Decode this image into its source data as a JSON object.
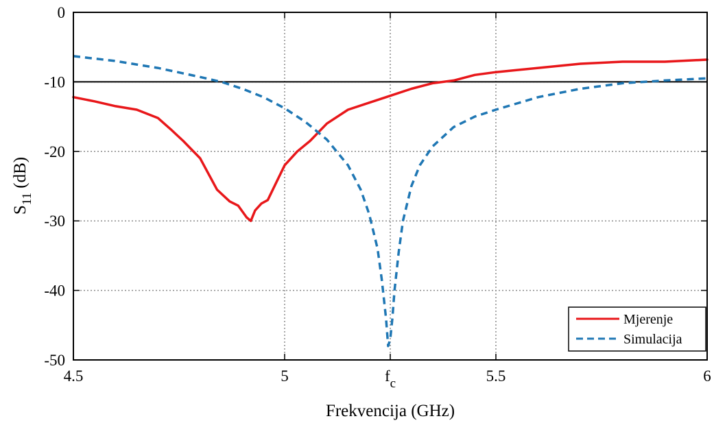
{
  "chart_data": {
    "type": "line",
    "xlabel": "Frekvencija (GHz)",
    "ylabel": {
      "main": "S",
      "sub": "11",
      "unit": "(dB)"
    },
    "xlim": [
      4.5,
      6
    ],
    "ylim": [
      -50,
      0
    ],
    "grid": true,
    "legend_position": "bottom-right",
    "x_ticks": [
      {
        "value": 4.5,
        "label": "4.5"
      },
      {
        "value": 5,
        "label": "5"
      },
      {
        "value": 5.25,
        "label": "f",
        "sub": "c"
      },
      {
        "value": 5.5,
        "label": "5.5"
      },
      {
        "value": 6,
        "label": "6"
      }
    ],
    "y_ticks": [
      {
        "value": 0,
        "label": "0"
      },
      {
        "value": -10,
        "label": "-10"
      },
      {
        "value": -20,
        "label": "-20"
      },
      {
        "value": -30,
        "label": "-30"
      },
      {
        "value": -40,
        "label": "-40"
      },
      {
        "value": -50,
        "label": "-50"
      }
    ],
    "reference_line": {
      "y": -10,
      "color": "#000000"
    },
    "series": [
      {
        "name": "Mjerenje",
        "color": "#e8171a",
        "style": "solid",
        "x": [
          4.5,
          4.55,
          4.6,
          4.65,
          4.7,
          4.73,
          4.76,
          4.8,
          4.84,
          4.87,
          4.89,
          4.91,
          4.92,
          4.93,
          4.945,
          4.96,
          4.98,
          5.0,
          5.03,
          5.06,
          5.1,
          5.15,
          5.2,
          5.25,
          5.3,
          5.35,
          5.4,
          5.45,
          5.5,
          5.6,
          5.7,
          5.8,
          5.9,
          6.0
        ],
        "y": [
          -12.2,
          -12.8,
          -13.5,
          -14.0,
          -15.2,
          -16.8,
          -18.5,
          -21.0,
          -25.5,
          -27.2,
          -27.8,
          -29.5,
          -30.0,
          -28.5,
          -27.5,
          -27.0,
          -24.5,
          -22.0,
          -20.0,
          -18.5,
          -16.0,
          -14.0,
          -13.0,
          -12.0,
          -11.0,
          -10.2,
          -9.8,
          -9.0,
          -8.6,
          -8.0,
          -7.4,
          -7.1,
          -7.1,
          -6.8
        ]
      },
      {
        "name": "Simulacija",
        "color": "#1f77b4",
        "style": "dashed",
        "x": [
          4.5,
          4.6,
          4.7,
          4.8,
          4.85,
          4.9,
          4.95,
          5.0,
          5.05,
          5.1,
          5.15,
          5.18,
          5.2,
          5.22,
          5.23,
          5.24,
          5.245,
          5.25,
          5.255,
          5.26,
          5.27,
          5.28,
          5.3,
          5.32,
          5.35,
          5.4,
          5.45,
          5.5,
          5.6,
          5.7,
          5.8,
          5.9,
          6.0
        ],
        "y": [
          -6.3,
          -7.0,
          -8.0,
          -9.3,
          -10.0,
          -11.0,
          -12.2,
          -13.8,
          -15.8,
          -18.3,
          -22.0,
          -25.5,
          -29.0,
          -34.0,
          -38.5,
          -44.0,
          -48.0,
          -47.0,
          -44.0,
          -40.0,
          -34.5,
          -30.0,
          -25.0,
          -22.0,
          -19.3,
          -16.5,
          -15.0,
          -14.0,
          -12.2,
          -11.0,
          -10.2,
          -9.8,
          -9.5
        ]
      }
    ]
  }
}
